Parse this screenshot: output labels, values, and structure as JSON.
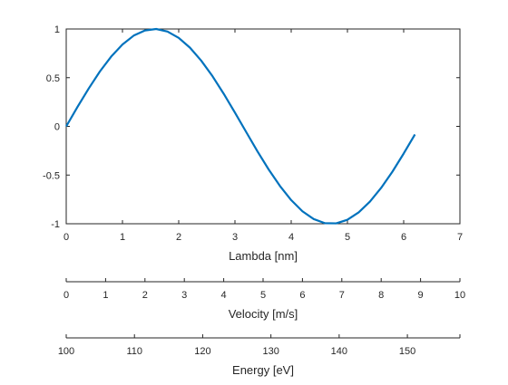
{
  "colors": {
    "line": "#0072BD",
    "axis": "#262626",
    "background": "#ffffff"
  },
  "chart_data": {
    "type": "line",
    "title": "",
    "main_axes": {
      "xlabel": "Lambda [nm]",
      "ylabel": "",
      "xlim": [
        0,
        7
      ],
      "ylim": [
        -1,
        1
      ],
      "xticks": [
        0,
        1,
        2,
        3,
        4,
        5,
        6,
        7
      ],
      "xtick_labels": [
        "0",
        "1",
        "2",
        "3",
        "4",
        "5",
        "6",
        "7"
      ],
      "yticks": [
        -1,
        -0.5,
        0,
        0.5,
        1
      ],
      "ytick_labels": [
        "-1",
        "-0.5",
        "0",
        "0.5",
        "1"
      ],
      "grid": false,
      "box": true
    },
    "series": [
      {
        "x": [
          0,
          0.2,
          0.4,
          0.6,
          0.8,
          1.0,
          1.2,
          1.4,
          1.6,
          1.8,
          2.0,
          2.2,
          2.4,
          2.6,
          2.8,
          3.0,
          3.2,
          3.4,
          3.6,
          3.8,
          4.0,
          4.2,
          4.4,
          4.6,
          4.8,
          5.0,
          5.2,
          5.4,
          5.6,
          5.8,
          6.0,
          6.2
        ],
        "y": [
          0,
          0.199,
          0.389,
          0.565,
          0.717,
          0.841,
          0.932,
          0.985,
          1.0,
          0.974,
          0.909,
          0.808,
          0.675,
          0.516,
          0.335,
          0.141,
          -0.058,
          -0.256,
          -0.443,
          -0.612,
          -0.757,
          -0.872,
          -0.952,
          -0.994,
          -0.996,
          -0.959,
          -0.883,
          -0.773,
          -0.631,
          -0.465,
          -0.279,
          -0.083
        ]
      }
    ],
    "extra_axes": [
      {
        "label": "Velocity [m/s]",
        "lim": [
          0,
          10
        ],
        "ticks": [
          0,
          1,
          2,
          3,
          4,
          5,
          6,
          7,
          8,
          9,
          10
        ],
        "tick_labels": [
          "0",
          "1",
          "2",
          "3",
          "4",
          "5",
          "6",
          "7",
          "8",
          "9",
          "10"
        ]
      },
      {
        "label": "Energy [eV]",
        "lim": [
          100,
          157.7
        ],
        "ticks": [
          100,
          110,
          120,
          130,
          140,
          150
        ],
        "tick_labels": [
          "100",
          "110",
          "120",
          "130",
          "140",
          "150"
        ]
      }
    ]
  }
}
